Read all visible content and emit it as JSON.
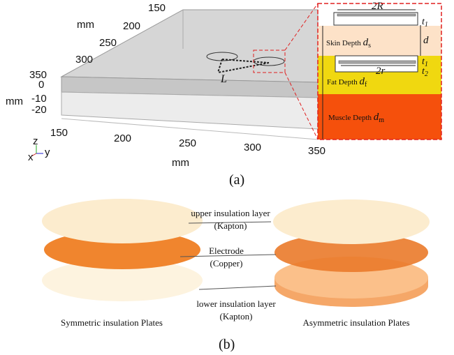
{
  "panel_a": {
    "label": "(a)",
    "y_axis": {
      "ticks": [
        150,
        200,
        250,
        300,
        350
      ],
      "unit": "mm"
    },
    "z_axis": {
      "ticks": [
        0,
        -10,
        -20
      ],
      "unit": "mm"
    },
    "x_axis": {
      "ticks": [
        150,
        200,
        250,
        300,
        350
      ],
      "unit": "mm"
    },
    "triad": {
      "z": "z",
      "x": "x",
      "y": "y"
    },
    "distance_label": "L",
    "inset": {
      "big_diameter": "2R",
      "top_thickness": {
        "symbol": "t",
        "sub": "1"
      },
      "gap": "d",
      "skin": {
        "text": "Skin Depth",
        "symbol": "d",
        "sub": "s"
      },
      "small_diameter": "2r",
      "mid_thickness": {
        "symbol": "t",
        "sub": "1"
      },
      "bottom_thickness": {
        "symbol": "t",
        "sub": "2"
      },
      "fat": {
        "text": "Fat Depth",
        "symbol": "d",
        "sub": "f"
      },
      "muscle": {
        "text": "Muscle Depth",
        "symbol": "d",
        "sub": "m"
      }
    }
  },
  "panel_b": {
    "label": "(b)",
    "upper_layer": {
      "line1": "upper insulation layer",
      "line2": "(Kapton)"
    },
    "electrode": {
      "line1": "Electrode",
      "line2": "(Copper)"
    },
    "lower_layer": {
      "line1": "lower insulation layer",
      "line2": "(Kapton)"
    },
    "left_caption": "Symmetric insulation Plates",
    "right_caption": "Asymmetric insulation Plates"
  }
}
